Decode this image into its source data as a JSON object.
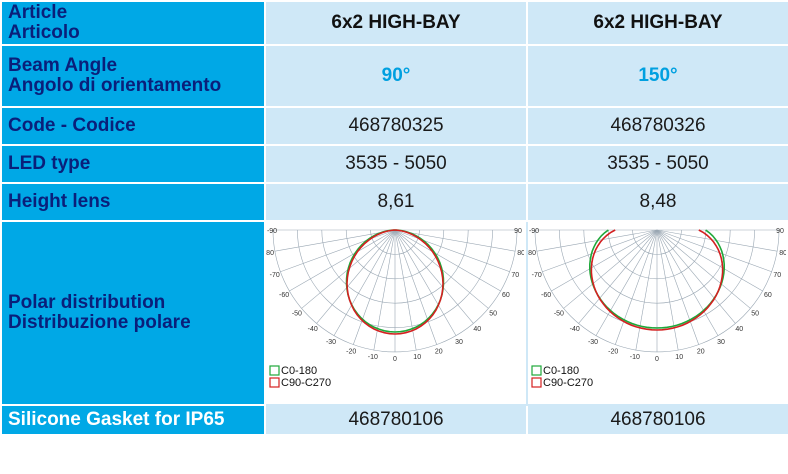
{
  "rows": {
    "article": {
      "label_en": "Article",
      "label_it": "Articolo",
      "values": [
        "6x2 HIGH-BAY",
        "6x2 HIGH-BAY"
      ]
    },
    "beam": {
      "label_en": "Beam Angle",
      "label_it": "Angolo di orientamento",
      "values": [
        "90°",
        "150°"
      ]
    },
    "code": {
      "label": "Code - Codice",
      "values": [
        "468780325",
        "468780326"
      ]
    },
    "led": {
      "label": "LED type",
      "values": [
        "3535 - 5050",
        "3535 - 5050"
      ]
    },
    "height": {
      "label": "Height lens",
      "values": [
        "8,61",
        "8,48"
      ]
    },
    "polar": {
      "label_en": "Polar distribution",
      "label_it": "Distribuzione polare"
    },
    "gasket": {
      "label": "Silicone Gasket for IP65",
      "values": [
        "468780106",
        "468780106"
      ]
    }
  },
  "polar_chart": {
    "angle_ticks": [
      "-90",
      "-80",
      "-70",
      "-60",
      "-50",
      "-40",
      "-30",
      "-20",
      "-10",
      "0",
      "10",
      "20",
      "30",
      "40",
      "50",
      "60",
      "70",
      "80",
      "90"
    ],
    "legend": [
      "C0-180",
      "C90-C270"
    ],
    "colors": {
      "c0": "#1fa83a",
      "c90": "#d42020",
      "grid": "#9aa7b3"
    }
  }
}
